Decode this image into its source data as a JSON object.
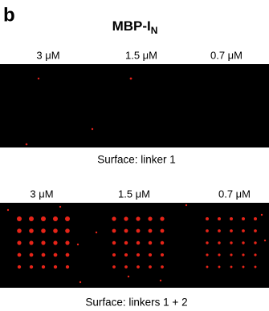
{
  "panel": {
    "letter": "b",
    "title": {
      "main": "MBP-I",
      "sub": "N"
    },
    "top": {
      "labels": [
        "3 μM",
        "1.5 μM",
        "0.7 μM"
      ],
      "caption": "Surface:  linker 1"
    },
    "bottom": {
      "labels": [
        "3 μM",
        "1.5 μM",
        "0.7 μM"
      ],
      "caption": "Surface:  linkers 1 + 2"
    }
  }
}
